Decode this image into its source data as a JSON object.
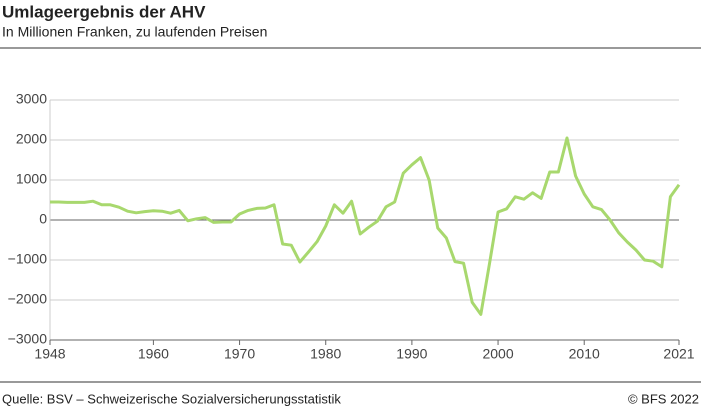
{
  "chart_data": {
    "type": "line",
    "title": "Umlageergebnis der AHV",
    "subtitle": "In Millionen Franken, zu laufenden Preisen",
    "source": "Quelle: BSV – Schweizerische Sozialversicherungsstatistik",
    "copyright": "© BFS 2022",
    "x": [
      1948,
      1949,
      1950,
      1951,
      1952,
      1953,
      1954,
      1955,
      1956,
      1957,
      1958,
      1959,
      1960,
      1961,
      1962,
      1963,
      1964,
      1965,
      1966,
      1967,
      1968,
      1969,
      1970,
      1971,
      1972,
      1973,
      1974,
      1975,
      1976,
      1977,
      1978,
      1979,
      1980,
      1981,
      1982,
      1983,
      1984,
      1985,
      1986,
      1987,
      1988,
      1989,
      1990,
      1991,
      1992,
      1993,
      1994,
      1995,
      1996,
      1997,
      1998,
      1999,
      2000,
      2001,
      2002,
      2003,
      2004,
      2005,
      2006,
      2007,
      2008,
      2009,
      2010,
      2011,
      2012,
      2013,
      2014,
      2015,
      2016,
      2017,
      2018,
      2019,
      2020,
      2021
    ],
    "series": [
      {
        "color": "#a8d86e",
        "values": [
          450,
          450,
          440,
          440,
          440,
          470,
          380,
          380,
          320,
          220,
          180,
          210,
          230,
          220,
          170,
          240,
          -20,
          30,
          60,
          -60,
          -50,
          -50,
          150,
          240,
          290,
          300,
          380,
          -600,
          -630,
          -1050,
          -800,
          -540,
          -150,
          380,
          170,
          470,
          -350,
          -180,
          -30,
          330,
          450,
          1170,
          1380,
          1560,
          1000,
          -200,
          -450,
          -1040,
          -1080,
          -2060,
          -2360,
          -1100,
          200,
          280,
          580,
          520,
          680,
          540,
          1200,
          1200,
          2050,
          1100,
          650,
          330,
          260,
          0,
          -320,
          -550,
          -750,
          -1000,
          -1030,
          -1170,
          580,
          880
        ]
      }
    ],
    "xlim": [
      1948,
      2021
    ],
    "xticks": [
      1948,
      1960,
      1970,
      1980,
      1990,
      2000,
      2010,
      2021
    ],
    "ylim": [
      -3000,
      3000
    ],
    "yticks": [
      {
        "value": -3000,
        "label": "−3000"
      },
      {
        "value": -2000,
        "label": "−2000"
      },
      {
        "value": -1000,
        "label": "−1000"
      },
      0,
      1000,
      2000,
      3000
    ],
    "grid": true
  }
}
